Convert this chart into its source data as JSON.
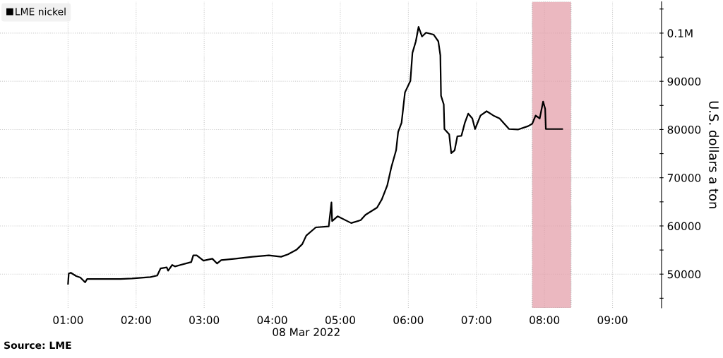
{
  "chart_data": {
    "type": "line",
    "xlabel": "08 Mar 2022",
    "ylabel": "U.S. dollars a ton",
    "annotations": [
      "Source: LME"
    ],
    "legend": "top left",
    "grid": true,
    "marker": "none",
    "line_style": "solid",
    "xlim": [
      0.0,
      9.72
    ],
    "ylim": [
      43000,
      106500
    ],
    "xticks": [
      {
        "value": 1,
        "label": "01:00"
      },
      {
        "value": 2,
        "label": "02:00"
      },
      {
        "value": 3,
        "label": "03:00"
      },
      {
        "value": 4,
        "label": "04:00"
      },
      {
        "value": 5,
        "label": "05:00"
      },
      {
        "value": 6,
        "label": "06:00"
      },
      {
        "value": 7,
        "label": "07:00"
      },
      {
        "value": 8,
        "label": "08:00"
      },
      {
        "value": 9,
        "label": "09:00"
      }
    ],
    "yticks": [
      {
        "value": 45000,
        "label": null
      },
      50000,
      {
        "value": 55000,
        "label": null
      },
      60000,
      {
        "value": 65000,
        "label": null
      },
      70000,
      {
        "value": 75000,
        "label": null
      },
      80000,
      {
        "value": 85000,
        "label": null
      },
      90000,
      {
        "value": 95000,
        "label": null
      },
      {
        "value": 100000,
        "label": "0.1M"
      },
      {
        "value": 105000,
        "label": null
      }
    ],
    "bands": [
      {
        "axis": "x",
        "from": 7.82,
        "to": 8.39,
        "color": "#e39aa6"
      }
    ],
    "series": [
      {
        "name": "LME nickel",
        "color": "#000000",
        "x": [
          1.0,
          1.01,
          1.04,
          1.12,
          1.18,
          1.25,
          1.28,
          1.43,
          1.77,
          1.94,
          2.21,
          2.31,
          2.36,
          2.45,
          2.47,
          2.53,
          2.57,
          2.81,
          2.84,
          2.89,
          2.99,
          3.12,
          3.19,
          3.25,
          3.46,
          3.71,
          3.95,
          4.13,
          4.23,
          4.36,
          4.44,
          4.5,
          4.64,
          4.83,
          4.87,
          4.88,
          4.96,
          5.16,
          5.3,
          5.37,
          5.54,
          5.61,
          5.69,
          5.75,
          5.82,
          5.85,
          5.9,
          5.95,
          6.03,
          6.06,
          6.11,
          6.15,
          6.2,
          6.26,
          6.37,
          6.44,
          6.47,
          6.48,
          6.52,
          6.53,
          6.6,
          6.63,
          6.68,
          6.72,
          6.78,
          6.83,
          6.88,
          6.94,
          6.98,
          7.06,
          7.15,
          7.25,
          7.34,
          7.48,
          7.61,
          7.76,
          7.82,
          7.87,
          7.93,
          7.98,
          8.01,
          8.02,
          8.26
        ],
        "values": [
          48000,
          50100,
          50300,
          49600,
          49300,
          48300,
          49000,
          49000,
          49000,
          49100,
          49400,
          49700,
          51200,
          51400,
          50700,
          51900,
          51600,
          52500,
          53900,
          53900,
          52800,
          53200,
          52200,
          52900,
          53200,
          53600,
          53900,
          53600,
          54100,
          55100,
          56200,
          58000,
          59700,
          59900,
          64900,
          61000,
          62000,
          60600,
          61200,
          62300,
          63800,
          65500,
          68400,
          72200,
          75700,
          79500,
          81400,
          87700,
          90100,
          95900,
          98300,
          101300,
          99300,
          100100,
          99700,
          98300,
          95400,
          87000,
          85200,
          80100,
          79000,
          75100,
          75700,
          78600,
          78700,
          81400,
          83300,
          82300,
          80100,
          82900,
          83800,
          82900,
          82300,
          80100,
          80000,
          80700,
          81200,
          82900,
          82300,
          85800,
          84300,
          80100,
          80100
        ]
      }
    ]
  }
}
